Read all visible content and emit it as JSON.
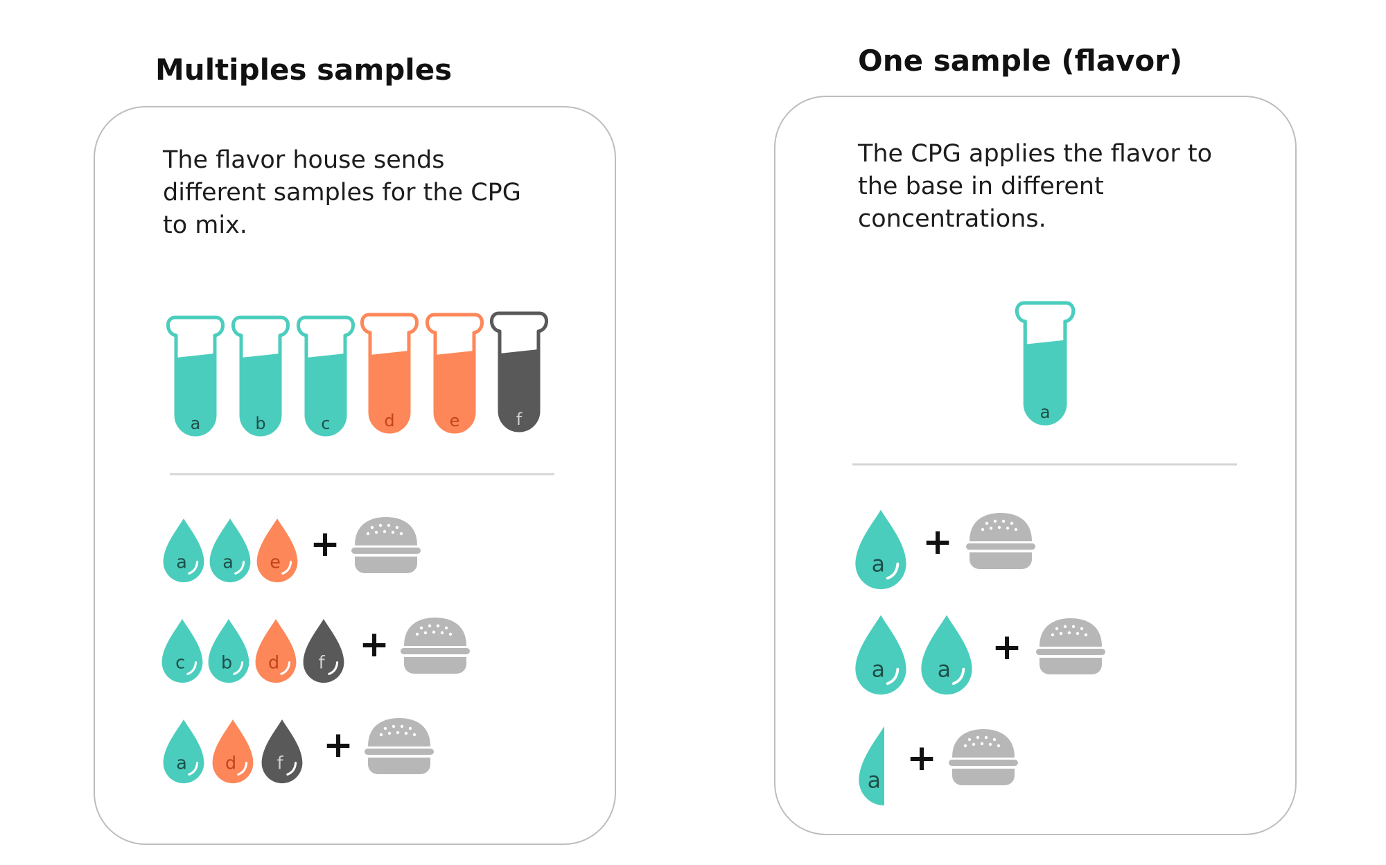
{
  "colors": {
    "teal": "#4bcdbd",
    "orange": "#fd8759",
    "dark": "#595959",
    "base": "#b7b7b7",
    "divider": "#d5d5d5"
  },
  "left_panel": {
    "title": "Multiples samples",
    "description_lines": [
      "The flavor house sends",
      "different samples for the CPG",
      "to mix."
    ],
    "tubes": [
      {
        "label": "a",
        "color": "teal"
      },
      {
        "label": "b",
        "color": "teal"
      },
      {
        "label": "c",
        "color": "teal"
      },
      {
        "label": "d",
        "color": "orange"
      },
      {
        "label": "e",
        "color": "orange"
      },
      {
        "label": "f",
        "color": "dark"
      }
    ],
    "mixes": [
      {
        "drops": [
          {
            "label": "a",
            "color": "teal"
          },
          {
            "label": "a",
            "color": "teal"
          },
          {
            "label": "e",
            "color": "orange"
          }
        ],
        "plus": "+"
      },
      {
        "drops": [
          {
            "label": "c",
            "color": "teal"
          },
          {
            "label": "b",
            "color": "teal"
          },
          {
            "label": "d",
            "color": "orange"
          },
          {
            "label": "f",
            "color": "dark"
          }
        ],
        "plus": "+"
      },
      {
        "drops": [
          {
            "label": "a",
            "color": "teal"
          },
          {
            "label": "d",
            "color": "orange"
          },
          {
            "label": "f",
            "color": "dark"
          }
        ],
        "plus": "+"
      }
    ]
  },
  "right_panel": {
    "title": "One sample (flavor)",
    "description_lines": [
      "The CPG applies the flavor to",
      "the base in different",
      "concentrations."
    ],
    "tube": {
      "label": "a",
      "color": "teal"
    },
    "mixes": [
      {
        "drops": [
          {
            "label": "a",
            "color": "teal",
            "amount": 1
          }
        ],
        "plus": "+"
      },
      {
        "drops": [
          {
            "label": "a",
            "color": "teal",
            "amount": 1
          },
          {
            "label": "a",
            "color": "teal",
            "amount": 1
          }
        ],
        "plus": "+"
      },
      {
        "drops": [
          {
            "label": "a",
            "color": "teal",
            "amount": 0.5
          }
        ],
        "plus": "+"
      }
    ]
  }
}
